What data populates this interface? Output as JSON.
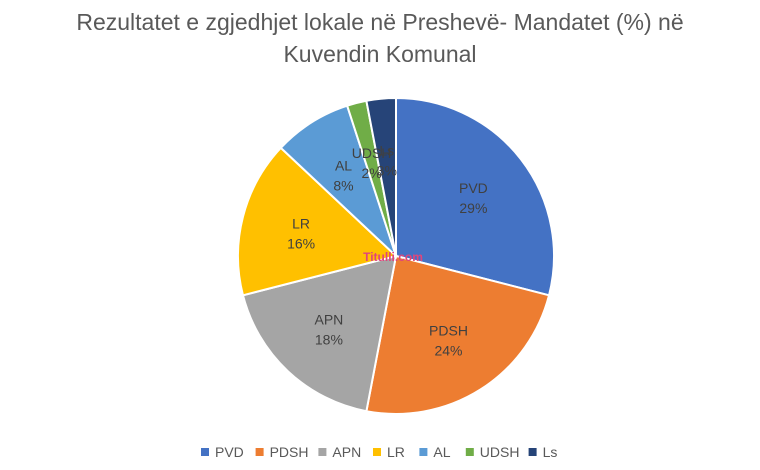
{
  "chart_data": {
    "type": "pie",
    "title_line1": "Rezultatet e zgjedhjet lokale në Preshevë- Mandatet (%) në",
    "title_line2": "Kuvendin Komunal",
    "slices": [
      {
        "label": "PVD",
        "value": 29,
        "color": "#4472C4"
      },
      {
        "label": "PDSH",
        "value": 24,
        "color": "#ED7D31"
      },
      {
        "label": "APN",
        "value": 18,
        "color": "#A5A5A5"
      },
      {
        "label": "LR",
        "value": 16,
        "color": "#FFC000"
      },
      {
        "label": "AL",
        "value": 8,
        "color": "#5B9BD5"
      },
      {
        "label": "UDSH",
        "value": 2,
        "color": "#70AD47"
      },
      {
        "label": "Ls",
        "value": 3,
        "color": "#264478"
      }
    ],
    "legend_position": "bottom"
  },
  "watermark": "Titulli.com"
}
